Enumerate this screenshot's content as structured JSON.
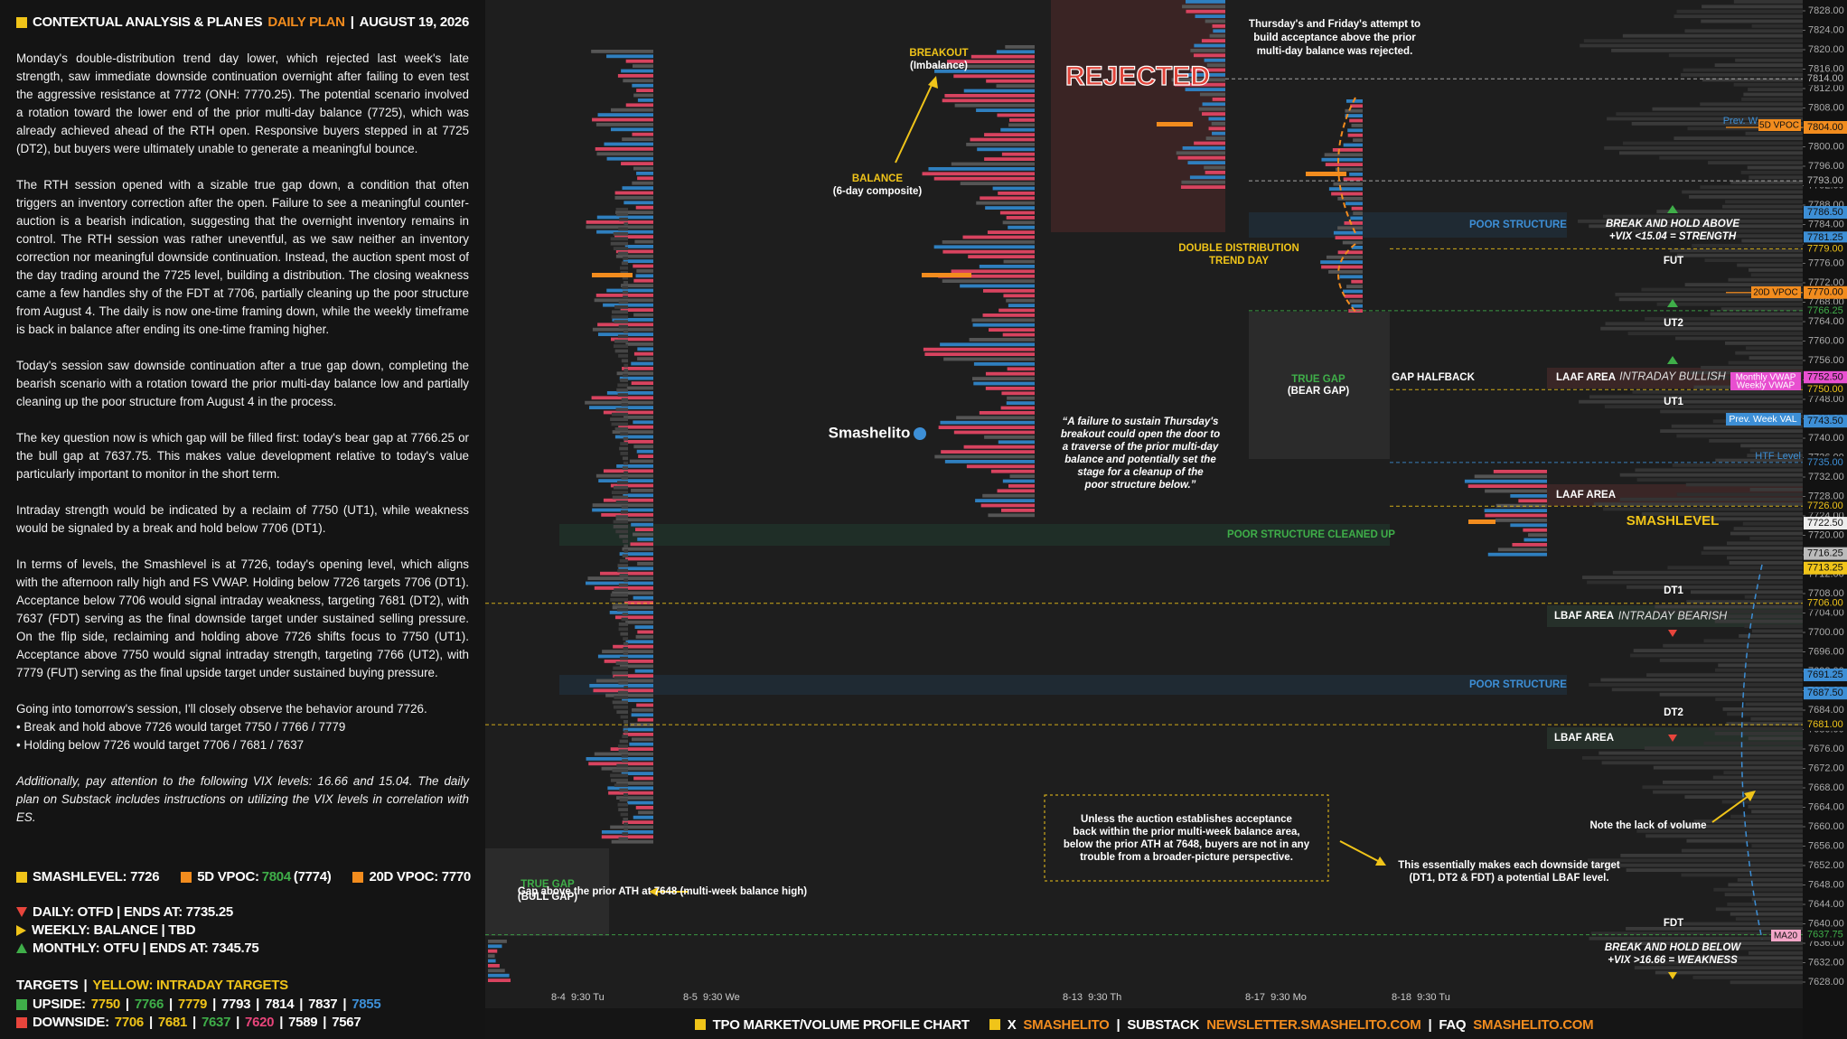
{
  "separator": "|",
  "panel": {
    "title": "CONTEXTUAL ANALYSIS & PLAN",
    "symbol": "ES",
    "plan": "DAILY PLAN",
    "date": "AUGUST 19, 2026",
    "paragraphs": [
      "Monday's double-distribution trend day lower, which rejected last week's late strength, saw immediate downside continuation overnight after failing to even test the aggressive resistance at 7772 (ONH: 7770.25). The potential scenario involved a rotation toward the lower end of the prior multi-day balance (7725), which was already achieved ahead of the RTH open. Responsive buyers stepped in at 7725 (DT2), but buyers were ultimately unable to generate a meaningful bounce.",
      "The RTH session opened with a sizable true gap down, a condition that often triggers an inventory correction after the open. Failure to see a meaningful counter-auction is a bearish indication, suggesting that the overnight inventory remains in control. The RTH session was rather uneventful, as we saw neither an inventory correction nor meaningful downside continuation. Instead, the auction spent most of the day trading around the 7725 level, building a distribution. The closing weakness came a few handles shy of the FDT at 7706, partially cleaning up the poor structure from August 4. The daily is now one-time framing down, while the weekly timeframe is back in balance after ending its one-time framing higher.",
      "Today's session saw downside continuation after a true gap down, completing the bearish scenario with a rotation toward the prior multi-day balance low and partially cleaning up the poor structure from August 4 in the process.",
      "The key question now is which gap will be filled first: today's bear gap at 7766.25 or the bull gap at 7637.75. This makes value development relative to today's value particularly important to monitor in the short term.",
      "Intraday strength would be indicated by a reclaim of 7750 (UT1), while weakness would be signaled by a break and hold below 7706 (DT1).",
      "In terms of levels, the Smashlevel is at 7726, today's opening level, which aligns with the afternoon rally high and FS VWAP. Holding below 7726 targets 7706 (DT1). Acceptance below 7706 would signal intraday weakness, targeting 7681 (DT2), with 7637 (FDT) serving as the final downside target under sustained selling pressure. On the flip side, reclaiming and holding above 7726 shifts focus to 7750 (UT1). Acceptance above 7750 would signal intraday strength, targeting 7766 (UT2), with 7779 (FUT) serving as the final upside target under sustained buying pressure.",
      "Going into tomorrow's session, I'll closely observe the behavior around 7726."
    ],
    "bullets": [
      "• Break and hold above 7726 would target 7750 / 7766 / 7779",
      "• Holding below 7726 would target 7706 / 7681 / 7637"
    ],
    "note": "Additionally, pay attention to the following VIX levels: 16.66 and 15.04. The daily plan on Substack includes instructions on utilizing the VIX levels in correlation with ES.",
    "smashlevel": "SMASHLEVEL: 7726",
    "vpoc5": {
      "label": "5D VPOC:",
      "value": "7804",
      "extra": "(7774)"
    },
    "vpoc20": "20D VPOC: 7770",
    "frames": [
      {
        "text": "DAILY: OTFD | ENDS AT: 7735.25",
        "color": "#e8453c"
      },
      {
        "text": "WEEKLY: BALANCE | TBD",
        "color": "#f0c419"
      },
      {
        "text": "MONTHLY: OTFU | ENDS AT: 7345.75",
        "color": "#3fae49"
      }
    ],
    "targets": {
      "title": "TARGETS",
      "legend": "YELLOW: INTRADAY TARGETS",
      "upside": {
        "label": "UPSIDE:",
        "color": "#3fae49",
        "items": [
          {
            "text": "7750",
            "color": "#f0c419"
          },
          {
            "text": "7766",
            "color": "#3fae49"
          },
          {
            "text": "7779",
            "color": "#f0c419"
          },
          {
            "text": "7793",
            "color": "#ffffff"
          },
          {
            "text": "7814",
            "color": "#ffffff"
          },
          {
            "text": "7837",
            "color": "#ffffff"
          },
          {
            "text": "7855",
            "color": "#3d8fd6"
          }
        ]
      },
      "downside": {
        "label": "DOWNSIDE:",
        "color": "#e8453c",
        "items": [
          {
            "text": "7706",
            "color": "#f0c419"
          },
          {
            "text": "7681",
            "color": "#f0c419"
          },
          {
            "text": "7637",
            "color": "#3fae49"
          },
          {
            "text": "7620",
            "color": "#e8457a"
          },
          {
            "text": "7589",
            "color": "#ffffff"
          },
          {
            "text": "7567",
            "color": "#ffffff"
          }
        ]
      }
    }
  },
  "chart_data": {
    "type": "profile",
    "ylim": [
      7628,
      7828
    ],
    "yticks": [
      {
        "value": 7628,
        "label": "7628.00"
      },
      {
        "value": 7632,
        "label": "7632.00"
      },
      {
        "value": 7636,
        "label": "7636.00"
      },
      {
        "value": 7640,
        "label": "7640.00"
      },
      {
        "value": 7644,
        "label": "7644.00"
      },
      {
        "value": 7648,
        "label": "7648.00"
      },
      {
        "value": 7652,
        "label": "7652.00"
      },
      {
        "value": 7656,
        "label": "7656.00"
      },
      {
        "value": 7660,
        "label": "7660.00"
      },
      {
        "value": 7664,
        "label": "7664.00"
      },
      {
        "value": 7668,
        "label": "7668.00"
      },
      {
        "value": 7672,
        "label": "7672.00"
      },
      {
        "value": 7676,
        "label": "7676.00"
      },
      {
        "value": 7680,
        "label": "7680.00"
      },
      {
        "value": 7684,
        "label": "7684.00"
      },
      {
        "value": 7688,
        "label": "7688.00"
      },
      {
        "value": 7692,
        "label": "7692.00"
      },
      {
        "value": 7696,
        "label": "7696.00"
      },
      {
        "value": 7700,
        "label": "7700.00"
      },
      {
        "value": 7704,
        "label": "7704.00"
      },
      {
        "value": 7708,
        "label": "7708.00"
      },
      {
        "value": 7712,
        "label": "7712.00"
      },
      {
        "value": 7716,
        "label": "7716.00"
      },
      {
        "value": 7720,
        "label": "7720.00"
      },
      {
        "value": 7724,
        "label": "7724.00"
      },
      {
        "value": 7728,
        "label": "7728.00"
      },
      {
        "value": 7732,
        "label": "7732.00"
      },
      {
        "value": 7736,
        "label": "7736.00"
      },
      {
        "value": 7740,
        "label": "7740.00"
      },
      {
        "value": 7744,
        "label": "7744.00"
      },
      {
        "value": 7748,
        "label": "7748.00"
      },
      {
        "value": 7752,
        "label": "7752.00"
      },
      {
        "value": 7756,
        "label": "7756.00"
      },
      {
        "value": 7760,
        "label": "7760.00"
      },
      {
        "value": 7764,
        "label": "7764.00"
      },
      {
        "value": 7768,
        "label": "7768.00"
      },
      {
        "value": 7772,
        "label": "7772.00"
      },
      {
        "value": 7776,
        "label": "7776.00"
      },
      {
        "value": 7780,
        "label": "7780.00"
      },
      {
        "value": 7784,
        "label": "7784.00"
      },
      {
        "value": 7788,
        "label": "7788.00"
      },
      {
        "value": 7792,
        "label": "7792.00"
      },
      {
        "value": 7796,
        "label": "7796.00"
      },
      {
        "value": 7800,
        "label": "7800.00"
      },
      {
        "value": 7804,
        "label": "7804.00"
      },
      {
        "value": 7808,
        "label": "7808.00"
      },
      {
        "value": 7812,
        "label": "7812.00"
      },
      {
        "value": 7816,
        "label": "7816.00"
      },
      {
        "value": 7820,
        "label": "7820.00"
      },
      {
        "value": 7824,
        "label": "7824.00"
      },
      {
        "value": 7828,
        "label": "7828.00"
      }
    ],
    "levels": [
      {
        "value": 7814,
        "label": "7814.00",
        "color": "#bbbbbb",
        "line": "dashed"
      },
      {
        "value": 7804,
        "label": "7804.00",
        "color": "#111111",
        "bg": "#f28c1e",
        "line": "solid"
      },
      {
        "value": 7793,
        "label": "7793.00",
        "color": "#bbbbbb",
        "line": "dashed"
      },
      {
        "value": 7786.5,
        "label": "7786.50",
        "color": "#111111",
        "bg": "#3d8fd6"
      },
      {
        "value": 7781.25,
        "label": "7781.25",
        "color": "#111111",
        "bg": "#3d8fd6"
      },
      {
        "value": 7779,
        "label": "7779.00",
        "color": "#f0c419",
        "line": "dashed"
      },
      {
        "value": 7770,
        "label": "7770.00",
        "color": "#111111",
        "bg": "#f28c1e",
        "line": "solid"
      },
      {
        "value": 7766.25,
        "label": "7766.25",
        "color": "#3fae49",
        "line": "dashed"
      },
      {
        "value": 7752.5,
        "label": "7752.50",
        "color": "#111111",
        "bg": "#e84fd0"
      },
      {
        "value": 7750,
        "label": "7750.00",
        "color": "#f0c419",
        "line": "dashed"
      },
      {
        "value": 7743.5,
        "label": "7743.50",
        "color": "#111111",
        "bg": "#3d8fd6"
      },
      {
        "value": 7735,
        "label": "7735.00",
        "color": "#3d8fd6",
        "line": "dashed"
      },
      {
        "value": 7726,
        "label": "7726.00",
        "color": "#f0c419",
        "line": "dashed"
      },
      {
        "value": 7722.5,
        "label": "7722.50",
        "color": "#111111",
        "bg": "#eeeeee"
      },
      {
        "value": 7716.25,
        "label": "7716.25",
        "color": "#111111",
        "bg": "#bbbbbb"
      },
      {
        "value": 7713.25,
        "label": "7713.25",
        "color": "#111111",
        "bg": "#f0c419"
      },
      {
        "value": 7706,
        "label": "7706.00",
        "color": "#f0c419",
        "line": "dashed"
      },
      {
        "value": 7691.25,
        "label": "7691.25",
        "color": "#111111",
        "bg": "#3d8fd6"
      },
      {
        "value": 7687.5,
        "label": "7687.50",
        "color": "#111111",
        "bg": "#3d8fd6"
      },
      {
        "value": 7681,
        "label": "7681.00",
        "color": "#f0c419",
        "line": "dashed"
      },
      {
        "value": 7637.75,
        "label": "7637.75",
        "color": "#3fae49",
        "line": "dashed"
      }
    ],
    "sessions": [
      "8-4  9:30 Tu",
      "8-5  9:30 We",
      "8-13  9:30 Th",
      "8-17  9:30 Mo",
      "8-18  9:30 Tu"
    ],
    "annotations": {
      "breakout": "BREAKOUT",
      "imbalance": "(Imbalance)",
      "balance": "BALANCE",
      "composite": "(6-day composite)",
      "rejected": "REJECTED",
      "thursday": [
        "Thursday's and Friday's attempt to",
        "build acceptance above the prior",
        "multi-day balance was rejected."
      ],
      "double": [
        "DOUBLE DISTRIBUTION",
        "TREND DAY"
      ],
      "poor": "POOR STRUCTURE",
      "cleaned": "POOR STRUCTURE CLEANED UP",
      "break_above": [
        "BREAK AND HOLD ABOVE",
        "+VIX <15.04 = STRENGTH"
      ],
      "break_below": [
        "BREAK AND HOLD BELOW",
        "+VIX >16.66 = WEAKNESS"
      ],
      "targets": [
        "FUT",
        "UT2",
        "UT1",
        "DT1",
        "DT2",
        "FDT"
      ],
      "bear_gap": [
        "TRUE GAP",
        "(BEAR GAP)"
      ],
      "bull_gap": [
        "TRUE GAP",
        "(BULL GAP)"
      ],
      "halfback": "GAP HALFBACK",
      "laaf": "LAAF AREA",
      "lbaf": "LBAF AREA",
      "bullish": "INTRADAY BULLISH",
      "bearish": "INTRADAY BEARISH",
      "smashlevel": "SMASHLEVEL",
      "quote": [
        "“A failure to sustain Thursday's",
        "breakout could open the door to",
        "a traverse of the prior multi-day",
        "balance and potentially set the",
        "stage for a cleanup of the",
        "poor structure below.”"
      ],
      "brand": "Smashelito",
      "gap_ath": "Gap above the prior ATH at 7648 (multi-week balance high)",
      "unless": [
        "Unless the auction establishes acceptance",
        "back within the prior multi-week balance area,",
        "below the prior ATH at 7648, buyers are not in any",
        "trouble from a broader-picture perspective."
      ],
      "essentially": [
        "This essentially makes each downside target",
        "(DT1, DT2 & FDT) a potential LBAF level."
      ],
      "lack": "Note the lack of volume",
      "prev_vpoc": "Prev. W",
      "vpoc5": "5D VPOC",
      "vpoc20": "20D VPOC",
      "mvwap": "Monthly VWAP",
      "wvwap": "Weekly VWAP",
      "pwval": "Prev. Week VAL",
      "htf": "HTF Level",
      "ma20": "MA20"
    }
  },
  "footer": {
    "title": "TPO MARKET/VOLUME PROFILE CHART",
    "x": "X",
    "handle": "SMASHELITO",
    "substack": "SUBSTACK",
    "newsletter": "NEWSLETTER.SMASHELITO.COM",
    "faq": "FAQ",
    "site": "SMASHELITO.COM"
  }
}
